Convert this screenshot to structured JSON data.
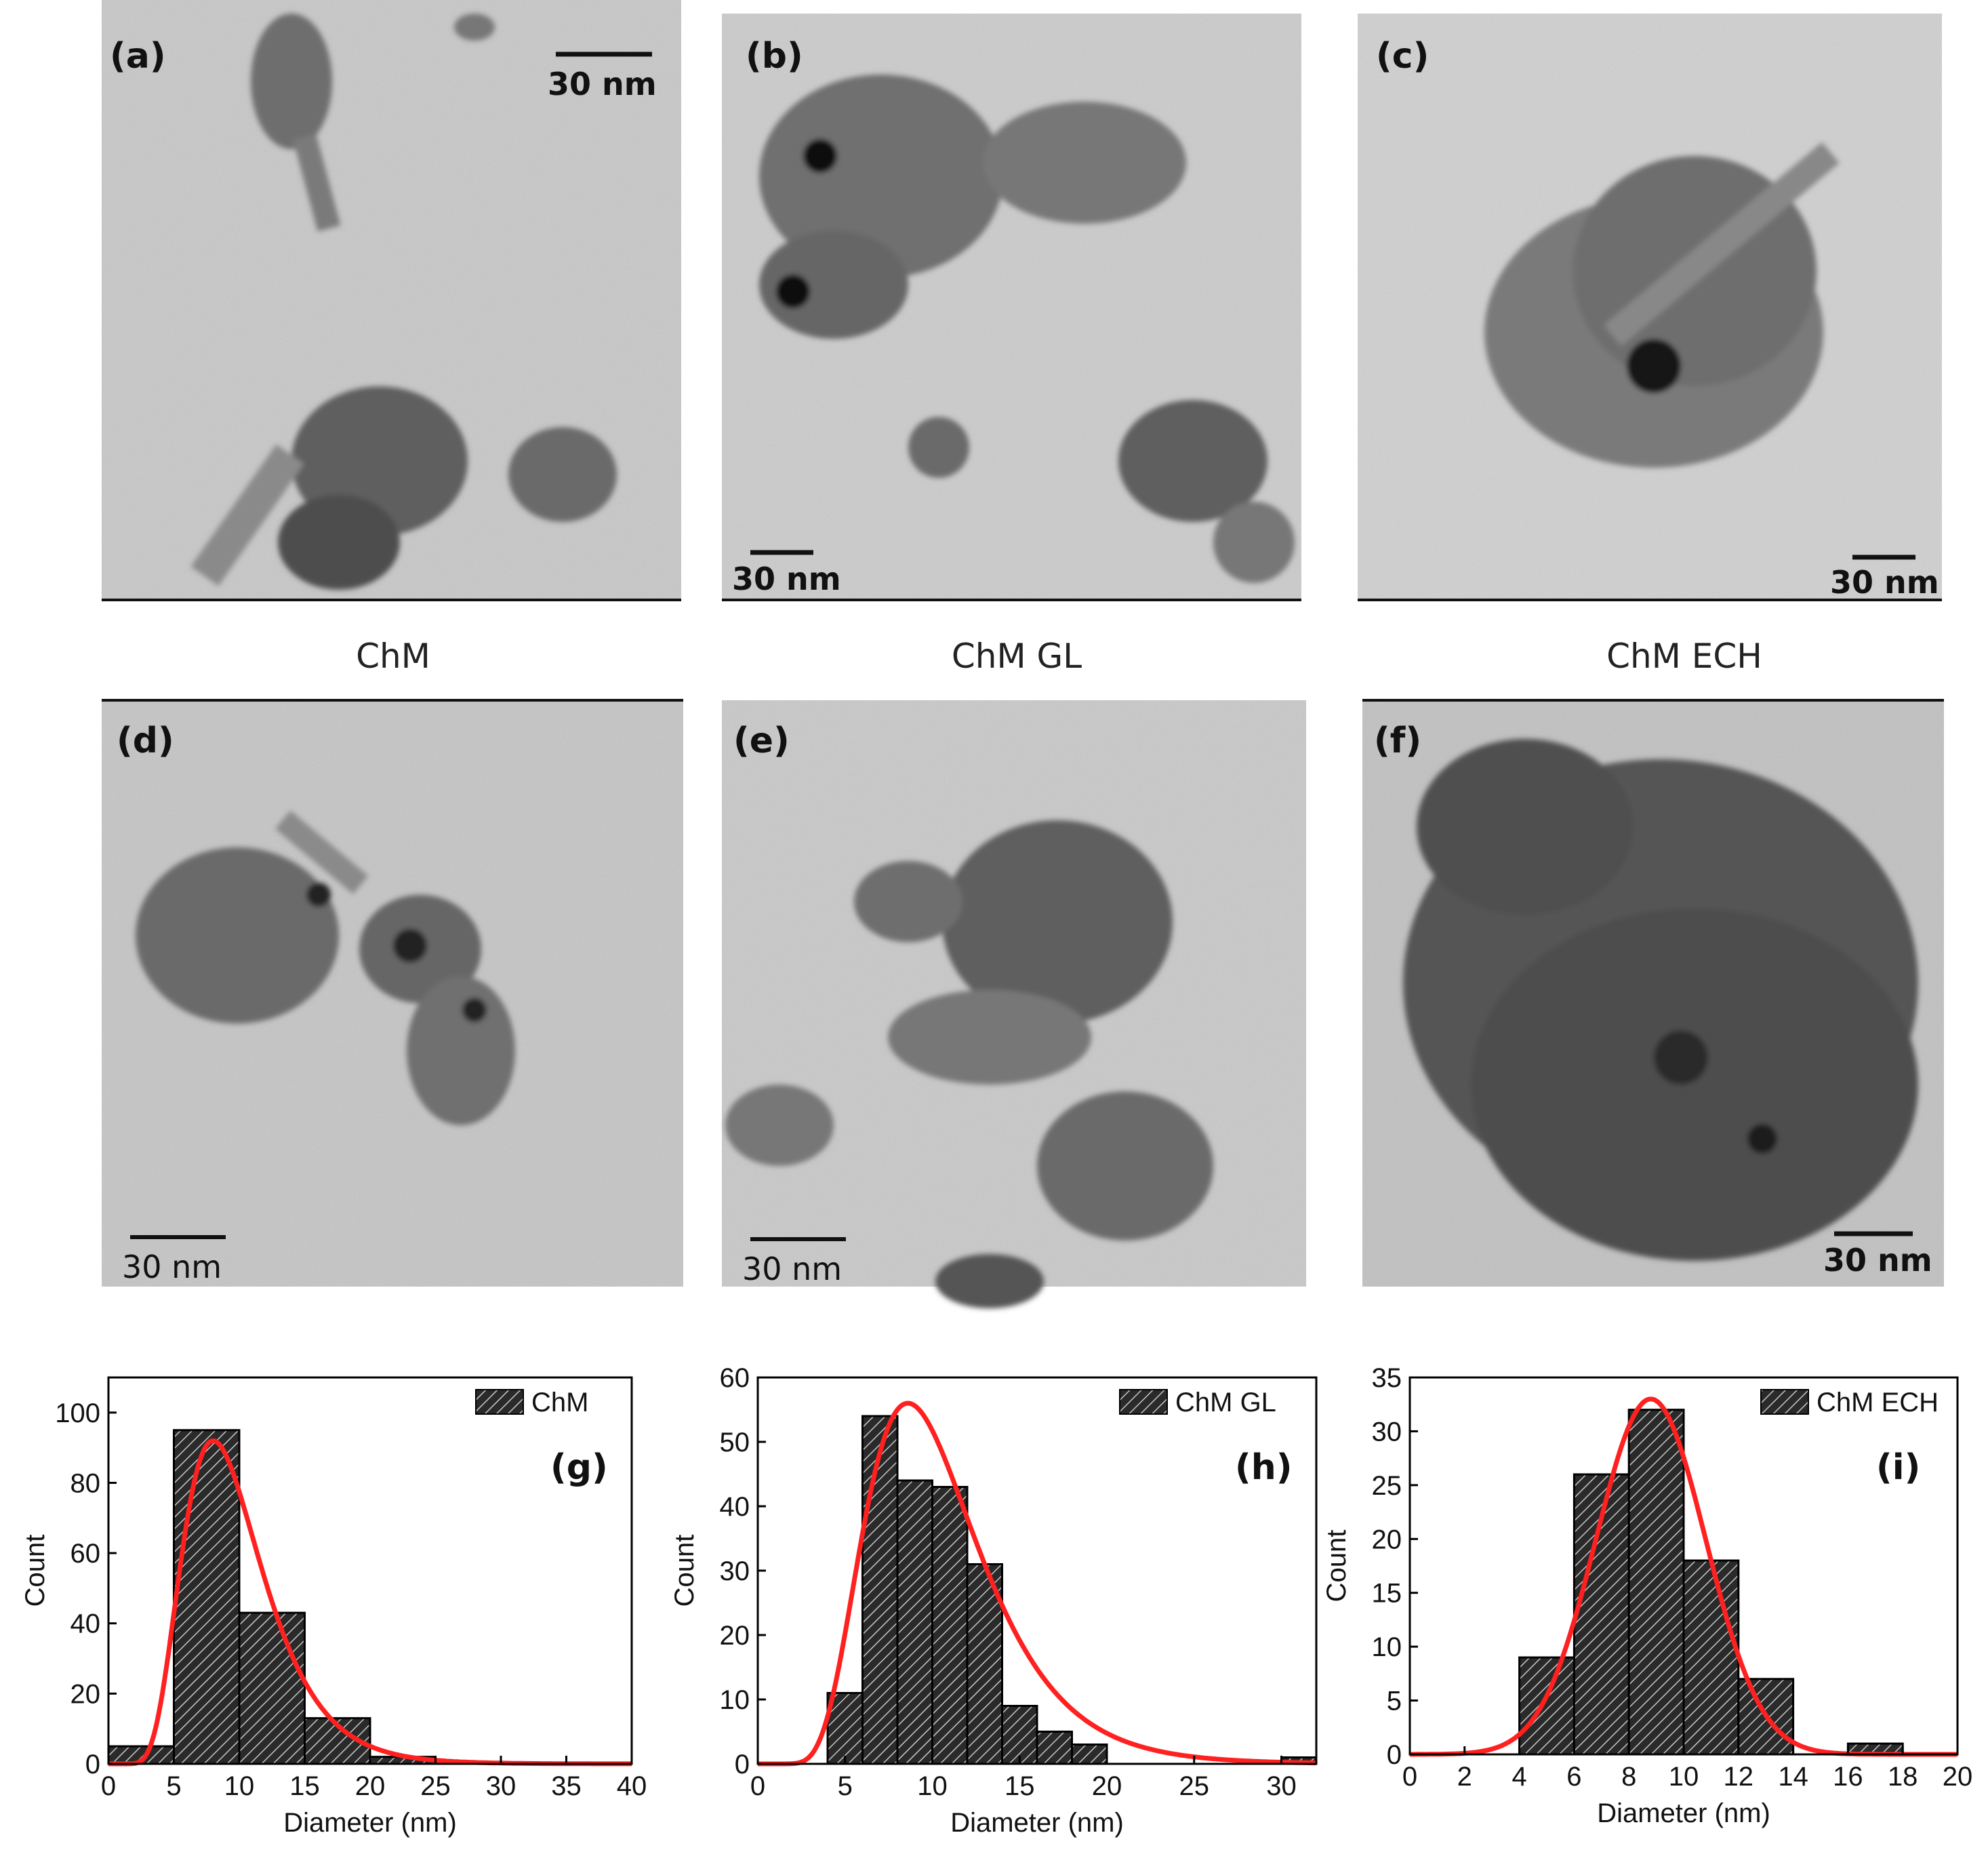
{
  "tem": {
    "panels": [
      {
        "label": "(a)",
        "scale": "30 nm"
      },
      {
        "label": "(b)",
        "scale": "30 nm"
      },
      {
        "label": "(c)",
        "scale": "30 nm"
      },
      {
        "label": "(d)",
        "scale": "30 nm"
      },
      {
        "label": "(e)",
        "scale": "30 nm"
      },
      {
        "label": "(f)",
        "scale": "30 nm"
      }
    ],
    "captions": [
      "ChM",
      "ChM GL",
      "ChM ECH"
    ]
  },
  "colors": {
    "fit": "#ff2020",
    "bar": "#2a2a2a",
    "hatch": "#bbbbbb"
  },
  "chart_data": [
    {
      "type": "bar",
      "tag": "(g)",
      "legend": "ChM",
      "xlabel": "Diameter (nm)",
      "ylabel": "Count",
      "xlim": [
        0,
        40
      ],
      "ylim": [
        0,
        110
      ],
      "xticks": [
        0,
        5,
        10,
        15,
        20,
        25,
        30,
        35,
        40
      ],
      "yticks": [
        0,
        20,
        40,
        60,
        80,
        100
      ],
      "bin_edges": [
        0,
        5,
        10,
        15,
        20,
        25,
        30,
        35,
        40
      ],
      "values": [
        5,
        95,
        43,
        13,
        2,
        0,
        0,
        0
      ],
      "fit": {
        "kind": "lognormal",
        "peak_x": 8,
        "peak_y": 92
      }
    },
    {
      "type": "bar",
      "tag": "(h)",
      "legend": "ChM GL",
      "xlabel": "Diameter (nm)",
      "ylabel": "Count",
      "xlim": [
        0,
        32
      ],
      "ylim": [
        0,
        60
      ],
      "xticks": [
        0,
        5,
        10,
        15,
        20,
        25,
        30
      ],
      "yticks": [
        0,
        10,
        20,
        30,
        40,
        50,
        60
      ],
      "bin_edges": [
        4,
        6,
        8,
        10,
        12,
        14,
        16,
        18,
        20,
        22,
        24,
        26,
        28,
        30,
        32
      ],
      "values": [
        11,
        54,
        44,
        43,
        31,
        9,
        5,
        3,
        0,
        0,
        0,
        0,
        0,
        1
      ],
      "fit": {
        "kind": "lognormal",
        "peak_x": 8.6,
        "peak_y": 56
      }
    },
    {
      "type": "bar",
      "tag": "(i)",
      "legend": "ChM ECH",
      "xlabel": "Diameter (nm)",
      "ylabel": "Count",
      "xlim": [
        0,
        20
      ],
      "ylim": [
        0,
        35
      ],
      "xticks": [
        0,
        2,
        4,
        6,
        8,
        10,
        12,
        14,
        16,
        18,
        20
      ],
      "yticks": [
        0,
        5,
        10,
        15,
        20,
        25,
        30,
        35
      ],
      "bin_edges": [
        4,
        6,
        8,
        10,
        12,
        14,
        16,
        18
      ],
      "values": [
        9,
        26,
        32,
        18,
        7,
        0,
        1
      ],
      "fit": {
        "kind": "gaussian",
        "peak_x": 8.8,
        "peak_y": 33
      }
    }
  ]
}
